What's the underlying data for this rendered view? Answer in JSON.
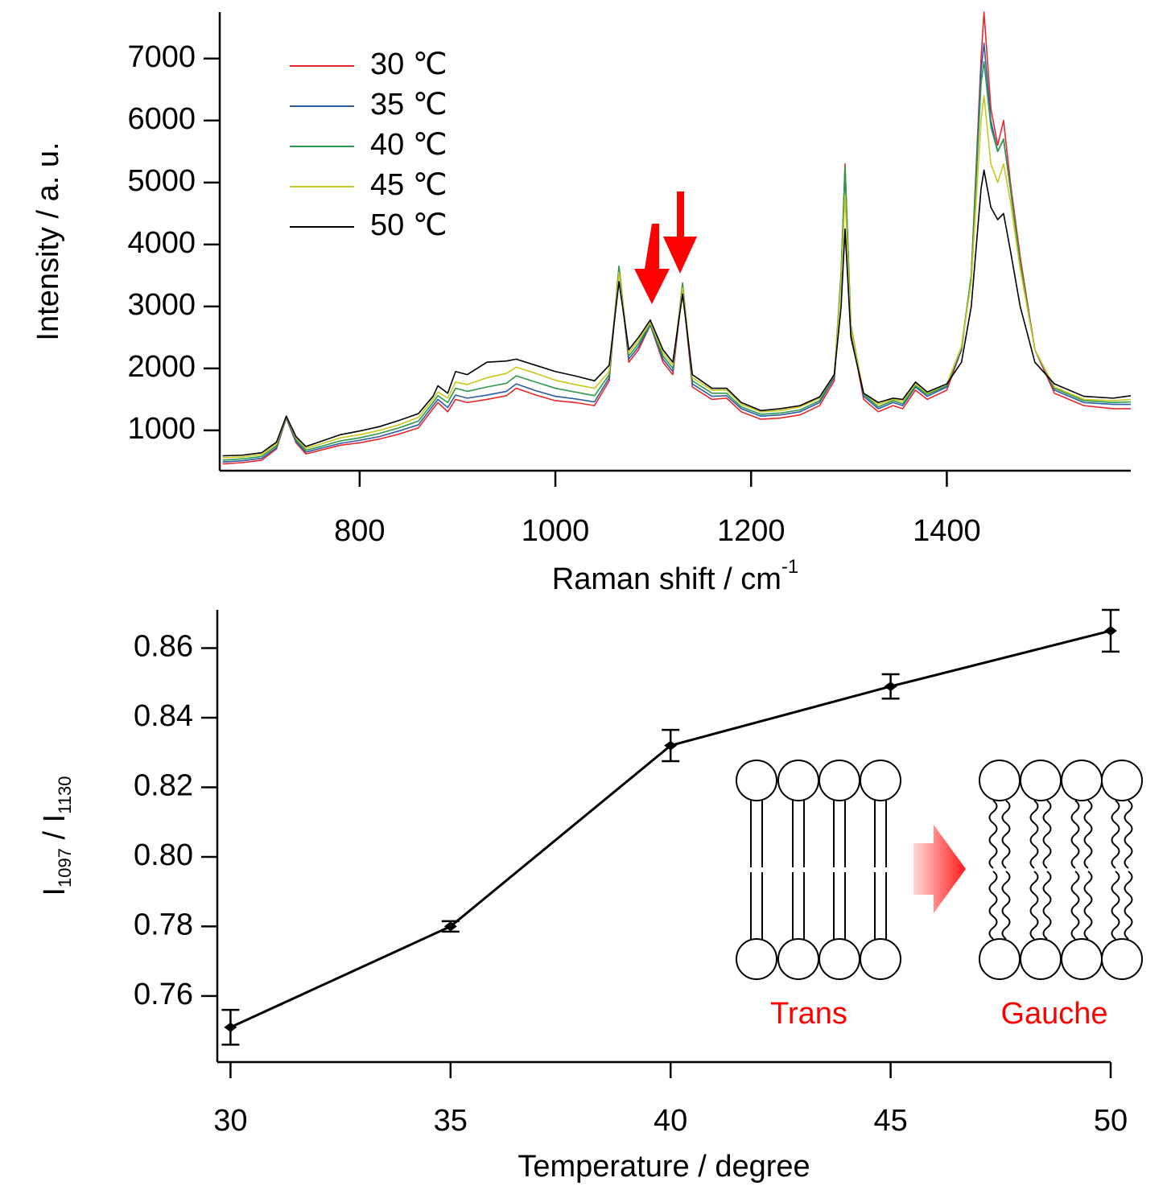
{
  "chart_data": [
    {
      "type": "line",
      "ylabel": [
        {
          "text": "Intensity / a. u."
        }
      ],
      "xlabel": [
        {
          "text": "Raman shift / cm"
        },
        {
          "text": "-1",
          "sup": true
        }
      ],
      "x": [
        660,
        680,
        700,
        715,
        725,
        735,
        745,
        760,
        780,
        800,
        820,
        840,
        860,
        875,
        880,
        890,
        898,
        910,
        930,
        950,
        960,
        980,
        1000,
        1020,
        1040,
        1055,
        1065,
        1075,
        1085,
        1097,
        1110,
        1120,
        1130,
        1140,
        1160,
        1175,
        1190,
        1210,
        1230,
        1250,
        1270,
        1285,
        1292,
        1296,
        1302,
        1315,
        1330,
        1345,
        1355,
        1368,
        1380,
        1400,
        1415,
        1425,
        1435,
        1438,
        1445,
        1452,
        1458,
        1465,
        1475,
        1490,
        1510,
        1540,
        1570,
        1588
      ],
      "series": [
        {
          "name": "30 ℃",
          "color": "#e8272a",
          "values": [
            460,
            480,
            520,
            700,
            1200,
            800,
            620,
            680,
            760,
            800,
            860,
            940,
            1040,
            1350,
            1450,
            1300,
            1500,
            1450,
            1500,
            1560,
            1680,
            1570,
            1480,
            1450,
            1400,
            1800,
            3650,
            2100,
            2300,
            2700,
            2100,
            1900,
            3300,
            1700,
            1500,
            1520,
            1300,
            1180,
            1200,
            1250,
            1400,
            1800,
            3500,
            5300,
            2600,
            1500,
            1300,
            1400,
            1350,
            1650,
            1500,
            1650,
            2300,
            3500,
            7000,
            7750,
            6200,
            5600,
            6000,
            5000,
            3800,
            2300,
            1600,
            1400,
            1350,
            1350
          ]
        },
        {
          "name": "35 ℃",
          "color": "#2e5aa8",
          "values": [
            490,
            510,
            550,
            720,
            1200,
            820,
            650,
            710,
            790,
            840,
            900,
            990,
            1090,
            1400,
            1500,
            1370,
            1570,
            1520,
            1570,
            1630,
            1750,
            1640,
            1550,
            1510,
            1460,
            1850,
            3600,
            2150,
            2350,
            2700,
            2150,
            1950,
            3350,
            1750,
            1550,
            1560,
            1350,
            1230,
            1250,
            1300,
            1450,
            1850,
            3500,
            5200,
            2650,
            1550,
            1350,
            1450,
            1400,
            1700,
            1550,
            1700,
            2300,
            3500,
            6800,
            7250,
            6000,
            5500,
            5700,
            4900,
            3700,
            2300,
            1650,
            1450,
            1420,
            1420
          ]
        },
        {
          "name": "40 ℃",
          "color": "#2a9a4a",
          "values": [
            520,
            540,
            580,
            750,
            1220,
            850,
            680,
            740,
            830,
            880,
            950,
            1040,
            1150,
            1450,
            1560,
            1450,
            1680,
            1630,
            1700,
            1760,
            1880,
            1780,
            1680,
            1620,
            1560,
            1900,
            3650,
            2200,
            2400,
            2720,
            2200,
            2000,
            3380,
            1800,
            1600,
            1600,
            1380,
            1260,
            1280,
            1330,
            1480,
            1880,
            3550,
            5250,
            2700,
            1580,
            1380,
            1480,
            1430,
            1720,
            1580,
            1720,
            2350,
            3500,
            6600,
            6950,
            5900,
            5500,
            5700,
            4900,
            3700,
            2300,
            1680,
            1480,
            1450,
            1460
          ]
        },
        {
          "name": "45 ℃",
          "color": "#c8c81e",
          "values": [
            560,
            570,
            610,
            780,
            1220,
            880,
            710,
            780,
            880,
            930,
            1000,
            1090,
            1210,
            1500,
            1620,
            1520,
            1780,
            1740,
            1850,
            1920,
            2020,
            1920,
            1810,
            1740,
            1680,
            1950,
            3550,
            2250,
            2450,
            2740,
            2250,
            2050,
            3300,
            1850,
            1650,
            1650,
            1420,
            1300,
            1320,
            1380,
            1520,
            1900,
            3400,
            4800,
            2650,
            1600,
            1420,
            1500,
            1470,
            1750,
            1600,
            1750,
            2350,
            3400,
            6000,
            6400,
            5300,
            5000,
            5300,
            4700,
            3600,
            2300,
            1700,
            1500,
            1480,
            1500
          ]
        },
        {
          "name": "50 ℃",
          "color": "#000000",
          "values": [
            590,
            600,
            640,
            810,
            1230,
            900,
            740,
            820,
            930,
            990,
            1060,
            1160,
            1270,
            1550,
            1720,
            1600,
            1950,
            1900,
            2100,
            2120,
            2150,
            2050,
            1950,
            1880,
            1800,
            2050,
            3400,
            2300,
            2500,
            2780,
            2300,
            2100,
            3200,
            1900,
            1680,
            1680,
            1450,
            1320,
            1350,
            1400,
            1540,
            1900,
            3000,
            4250,
            2500,
            1600,
            1450,
            1520,
            1500,
            1780,
            1620,
            1750,
            2100,
            3000,
            4900,
            5200,
            4600,
            4400,
            4500,
            3900,
            3000,
            2100,
            1750,
            1550,
            1520,
            1560
          ]
        }
      ],
      "xlim": [
        657,
        1588
      ],
      "xticks": [
        800,
        1000,
        1200,
        1400
      ],
      "ylim": [
        350,
        7750
      ],
      "yticks": [
        1000,
        2000,
        3000,
        4000,
        5000,
        6000,
        7000
      ],
      "legend": "upper left"
    },
    {
      "type": "line",
      "ylabel": [
        {
          "text": "I"
        },
        {
          "text": "1097",
          "sub": true
        },
        {
          "text": " / I"
        },
        {
          "text": "1130",
          "sub": true
        }
      ],
      "xlabel": [
        {
          "text": "Temperature / degree"
        }
      ],
      "x": [
        30,
        35,
        40,
        45,
        50
      ],
      "values": [
        0.751,
        0.78,
        0.832,
        0.849,
        0.865
      ],
      "errors": [
        0.005,
        0.0015,
        0.0045,
        0.0035,
        0.006
      ],
      "color": "#000000",
      "markers": true,
      "xlim": [
        29.7,
        50
      ],
      "xticks": [
        30,
        35,
        40,
        45,
        50
      ],
      "ylim": [
        0.741,
        0.871
      ],
      "yticks": [
        0.76,
        0.78,
        {
          "value": 0.8,
          "label": "0.80"
        },
        0.82,
        0.84,
        0.86
      ],
      "annotations": [
        "Trans",
        "Gauche"
      ],
      "annotation_color": "#ff0000"
    }
  ]
}
